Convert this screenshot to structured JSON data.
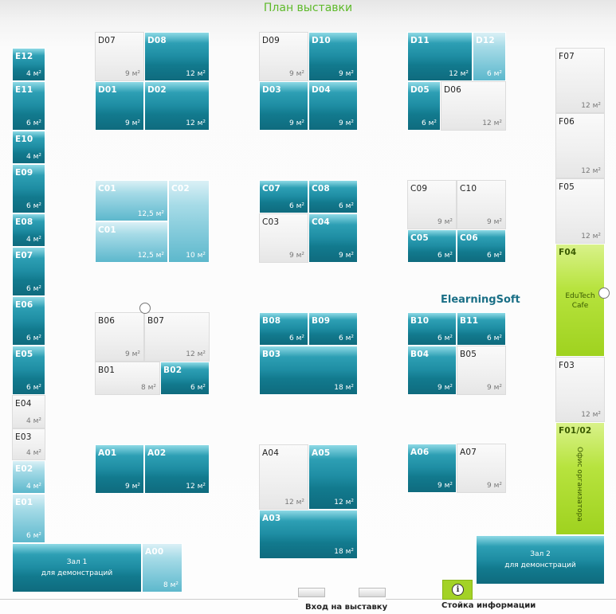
{
  "title": "План выставки",
  "company_label": "ElearningSoft",
  "entrance_label": "Вход на выставку",
  "info_label": "Стойка информации",
  "info_icon": "i",
  "colors": {
    "title": "#5eba2a",
    "teal": "#127a8e",
    "light": "#7cc7d8",
    "gray": "#eeeeee",
    "green": "#a8d82c"
  },
  "booths": {
    "d07": {
      "code": "D07",
      "area": "9 м²"
    },
    "d08": {
      "code": "D08",
      "area": "12 м²"
    },
    "d01": {
      "code": "D01",
      "area": "9 м²"
    },
    "d02": {
      "code": "D02",
      "area": "12 м²"
    },
    "d09": {
      "code": "D09",
      "area": "9 м²"
    },
    "d10": {
      "code": "D10",
      "area": "9 м²"
    },
    "d03": {
      "code": "D03",
      "area": "9 м²"
    },
    "d04": {
      "code": "D04",
      "area": "9 м²"
    },
    "d11": {
      "code": "D11",
      "area": "12 м²"
    },
    "d12": {
      "code": "D12",
      "area": "6 м²"
    },
    "d05": {
      "code": "D05",
      "area": "6 м²"
    },
    "d06": {
      "code": "D06",
      "area": "12 м²"
    },
    "c01a": {
      "code": "C01",
      "area": "12,5 м²"
    },
    "c01b": {
      "code": "C01",
      "area": "12,5 м²"
    },
    "c02": {
      "code": "C02",
      "area": "10 м²"
    },
    "c07": {
      "code": "C07",
      "area": "6 м²"
    },
    "c08": {
      "code": "C08",
      "area": "6 м²"
    },
    "c03": {
      "code": "C03",
      "area": "9 м²"
    },
    "c04": {
      "code": "C04",
      "area": "9 м²"
    },
    "c09": {
      "code": "C09",
      "area": "9 м²"
    },
    "c10": {
      "code": "C10",
      "area": "9 м²"
    },
    "c05": {
      "code": "C05",
      "area": "6 м²"
    },
    "c06": {
      "code": "C06",
      "area": "6 м²"
    },
    "b06": {
      "code": "B06",
      "area": "9 м²"
    },
    "b07": {
      "code": "B07",
      "area": "12 м²"
    },
    "b01": {
      "code": "B01",
      "area": "8 м²"
    },
    "b02": {
      "code": "B02",
      "area": "6 м²"
    },
    "b08": {
      "code": "B08",
      "area": "6 м²"
    },
    "b09": {
      "code": "B09",
      "area": "6 м²"
    },
    "b03": {
      "code": "B03",
      "area": "18 м²"
    },
    "b10": {
      "code": "B10",
      "area": "6 м²"
    },
    "b11": {
      "code": "B11",
      "area": "6 м²"
    },
    "b04": {
      "code": "B04",
      "area": "9 м²"
    },
    "b05": {
      "code": "B05",
      "area": "9 м²"
    },
    "a01": {
      "code": "A01",
      "area": "9 м²"
    },
    "a02": {
      "code": "A02",
      "area": "12 м²"
    },
    "a04": {
      "code": "A04",
      "area": "12 м²"
    },
    "a05": {
      "code": "A05",
      "area": "12 м²"
    },
    "a03": {
      "code": "A03",
      "area": "18 м²"
    },
    "a06": {
      "code": "A06",
      "area": "9 м²"
    },
    "a07": {
      "code": "A07",
      "area": "9 м²"
    },
    "e12": {
      "code": "E12",
      "area": "4 м²"
    },
    "e11": {
      "code": "E11",
      "area": "6 м²"
    },
    "e10": {
      "code": "E10",
      "area": "4 м²"
    },
    "e09": {
      "code": "E09",
      "area": "6 м²"
    },
    "e08": {
      "code": "E08",
      "area": "4 м²"
    },
    "e07": {
      "code": "E07",
      "area": "6 м²"
    },
    "e06": {
      "code": "E06",
      "area": "6 м²"
    },
    "e05": {
      "code": "E05",
      "area": "6 м²"
    },
    "e04": {
      "code": "E04",
      "area": "4 м²"
    },
    "e03": {
      "code": "E03",
      "area": "4 м²"
    },
    "e02": {
      "code": "E02",
      "area": "4 м²"
    },
    "e01": {
      "code": "E01",
      "area": "6 м²"
    },
    "f07": {
      "code": "F07",
      "area": "12 м²"
    },
    "f06": {
      "code": "F06",
      "area": "12 м²"
    },
    "f05": {
      "code": "F05",
      "area": "12 м²"
    },
    "f04": {
      "code": "F04",
      "line1": "EduTech",
      "line2": "Cafe"
    },
    "f03": {
      "code": "F03",
      "area": "12 м²"
    },
    "f0102": {
      "code": "F01/02",
      "vertical": "Офис организатора"
    },
    "a00": {
      "code": "A00",
      "area": "8 м²"
    },
    "hall1": {
      "line1": "Зал 1",
      "line2": "для демонстраций"
    },
    "hall2": {
      "line1": "Зал 2",
      "line2": "для демонстраций"
    }
  }
}
